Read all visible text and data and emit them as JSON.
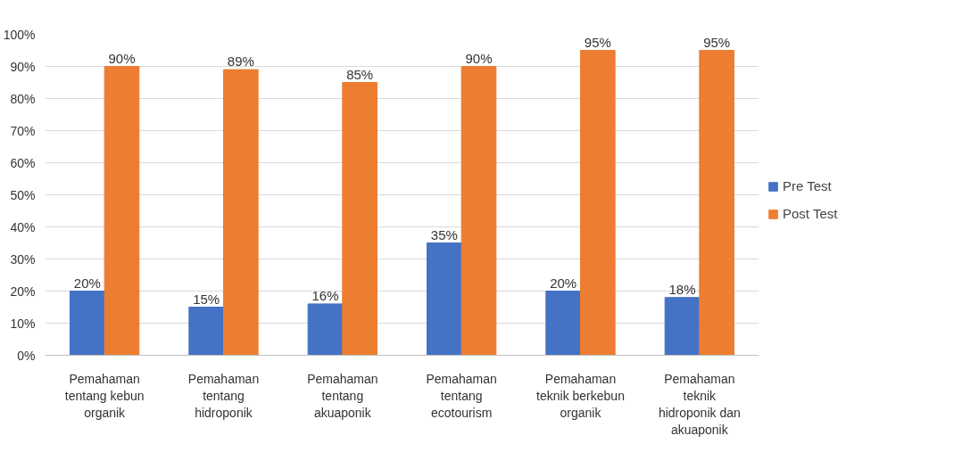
{
  "chart_data": {
    "type": "bar",
    "categories": [
      "Pemahaman tentang kebun organik",
      "Pemahaman tentang hidroponik",
      "Pemahaman tentang akuaponik",
      "Pemahaman tentang ecotourism",
      "Pemahaman teknik berkebun organik",
      "Pemahaman teknik hidroponik dan akuaponik"
    ],
    "series": [
      {
        "name": "Pre Test",
        "color": "#4472c4",
        "values": [
          20,
          15,
          16,
          35,
          20,
          18
        ],
        "value_labels": [
          "20%",
          "15%",
          "16%",
          "35%",
          "20%",
          "18%"
        ]
      },
      {
        "name": "Post Test",
        "color": "#ed7d31",
        "values": [
          90,
          89,
          85,
          90,
          95,
          95
        ],
        "value_labels": [
          "90%",
          "89%",
          "85%",
          "90%",
          "95%",
          "95%"
        ]
      }
    ],
    "ylim": [
      0,
      100
    ],
    "yticks": [
      {
        "value": 0,
        "label": "0%"
      },
      {
        "value": 10,
        "label": "10%"
      },
      {
        "value": 20,
        "label": "20%"
      },
      {
        "value": 30,
        "label": "30%"
      },
      {
        "value": 40,
        "label": "40%"
      },
      {
        "value": 50,
        "label": "50%"
      },
      {
        "value": 60,
        "label": "60%"
      },
      {
        "value": 70,
        "label": "70%"
      },
      {
        "value": 80,
        "label": "80%"
      },
      {
        "value": 90,
        "label": "90%"
      },
      {
        "value": 100,
        "label": "100%"
      }
    ],
    "grid": "y",
    "legend": "right"
  }
}
